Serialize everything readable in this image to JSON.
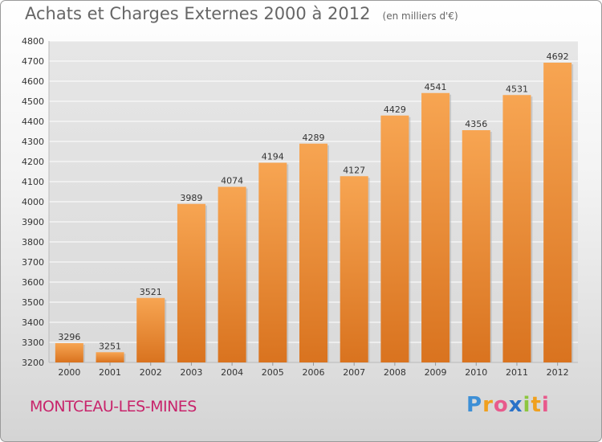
{
  "title": "Achats et Charges Externes 2000 à 2012",
  "subtitle": "(en milliers d'€)",
  "location": "MONTCEAU-LES-MINES",
  "brand": {
    "letters": [
      "P",
      "r",
      "o",
      "x",
      "i",
      "t",
      "i"
    ],
    "colors": [
      "#3d8fd6",
      "#f0a01e",
      "#e85a8c",
      "#2a72c8",
      "#8dc63f",
      "#f0a01e",
      "#e85a8c"
    ]
  },
  "colors": {
    "bar_light": "#f7a552",
    "bar_dark": "#d9731f",
    "grid": "#ffffff",
    "axis_text": "#333333",
    "title": "#666666",
    "location": "#c8246b"
  },
  "chart_data": {
    "type": "bar",
    "categories": [
      "2000",
      "2001",
      "2002",
      "2003",
      "2004",
      "2005",
      "2006",
      "2007",
      "2008",
      "2009",
      "2010",
      "2011",
      "2012"
    ],
    "values": [
      3296,
      3251,
      3521,
      3989,
      4074,
      4194,
      4289,
      4127,
      4429,
      4541,
      4356,
      4531,
      4692
    ],
    "ylim": [
      3200,
      4800
    ],
    "yticks": [
      3200,
      3300,
      3400,
      3500,
      3600,
      3700,
      3800,
      3900,
      4000,
      4100,
      4200,
      4300,
      4400,
      4500,
      4600,
      4700,
      4800
    ],
    "grid": true,
    "data_labels": true
  }
}
